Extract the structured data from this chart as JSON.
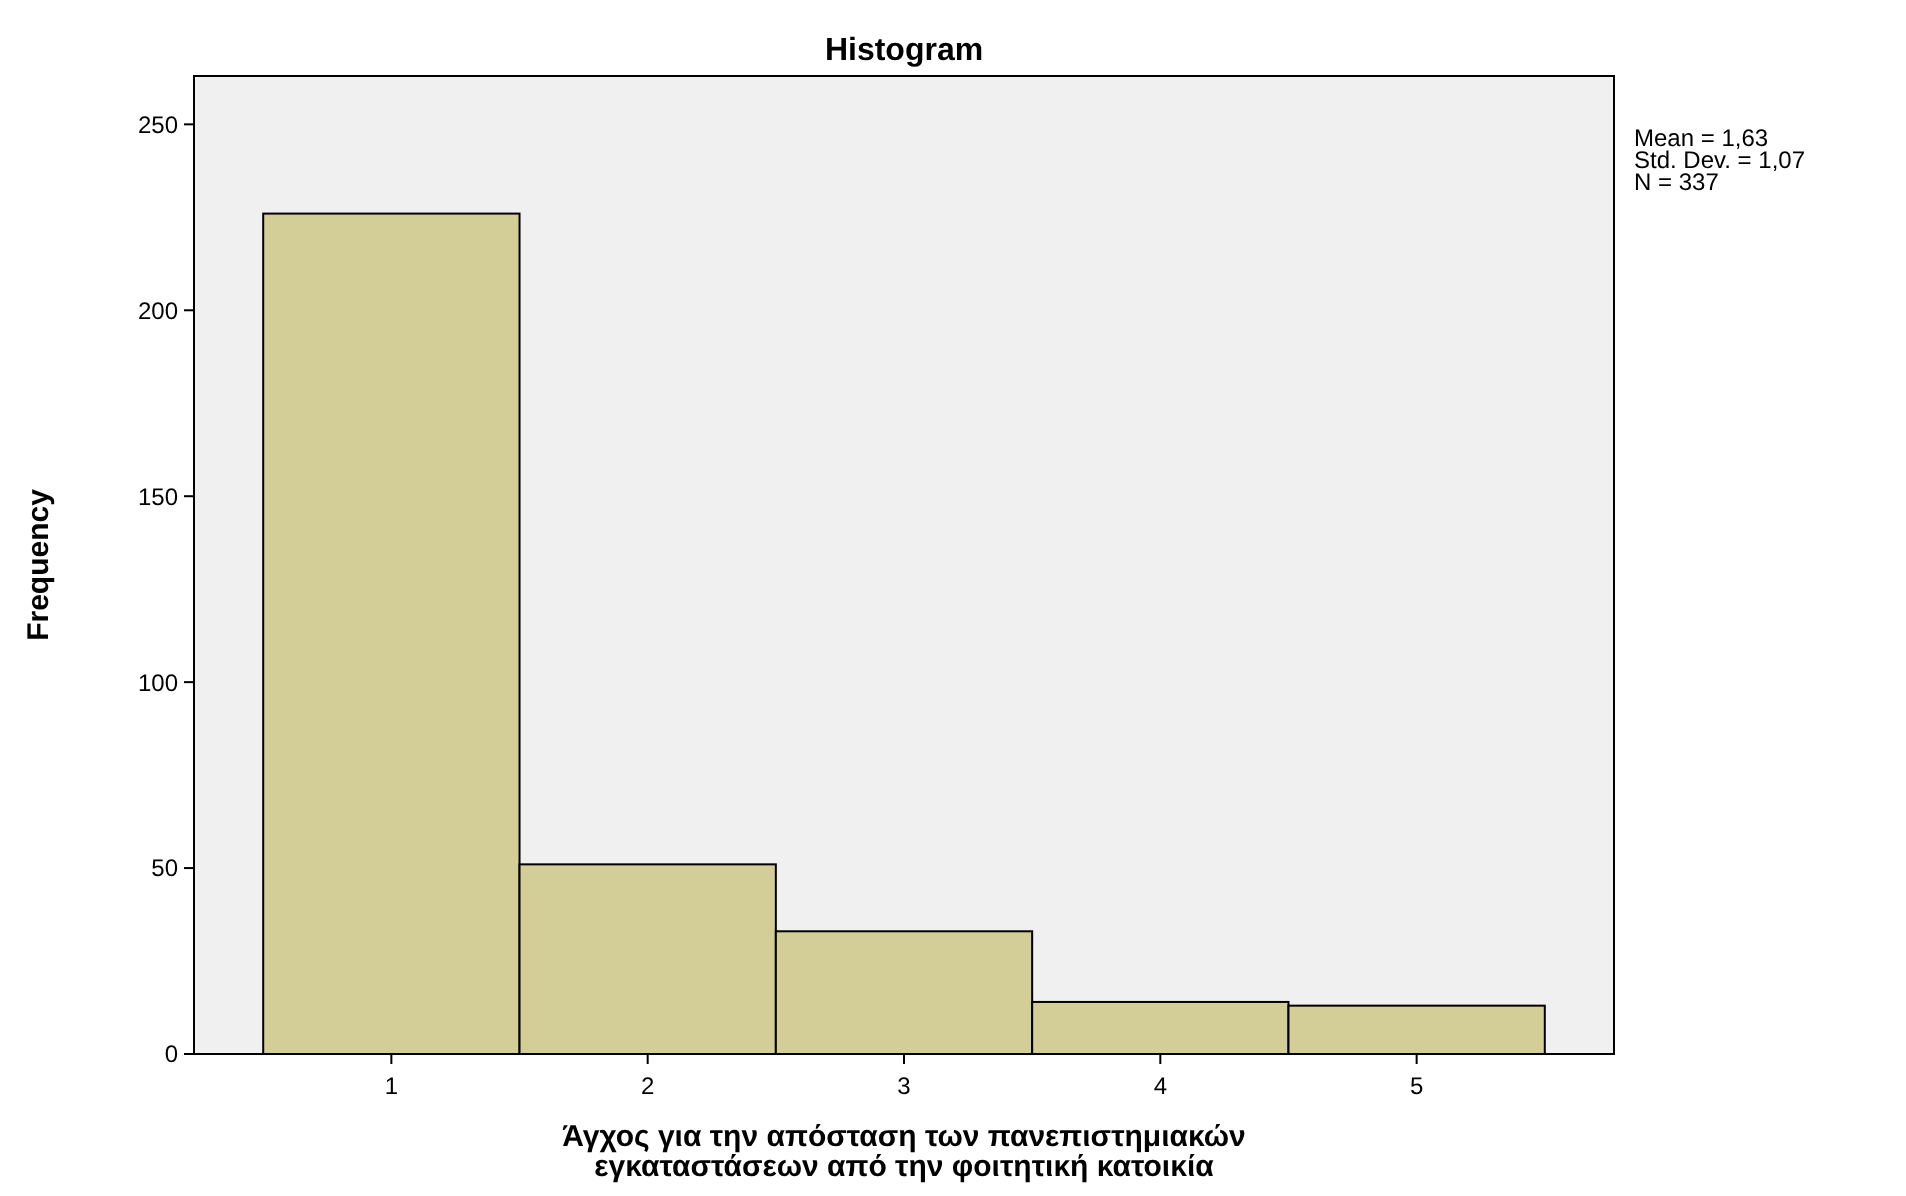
{
  "chart_data": {
    "type": "histogram",
    "title": "Histogram",
    "xlabel": "Άγχος για την απόσταση των πανεπιστημιακών\nεγκαταστάσεων από την φοιτητική κατοικία",
    "ylabel": "Frequency",
    "bins": [
      0.5,
      1.5,
      2.5,
      3.5,
      4.5,
      5.5
    ],
    "values": [
      226,
      51,
      33,
      14,
      13
    ],
    "color": "#d3ce97",
    "xlim": [
      0.23,
      5.77
    ],
    "xticks": [
      1,
      2,
      3,
      4,
      5
    ],
    "ylim": [
      0,
      263
    ],
    "yticks": [
      0,
      50,
      100,
      150,
      200,
      250
    ],
    "annotations": [
      "Mean = 1,63",
      "Std. Dev. = 1,07",
      "N = 337"
    ]
  }
}
